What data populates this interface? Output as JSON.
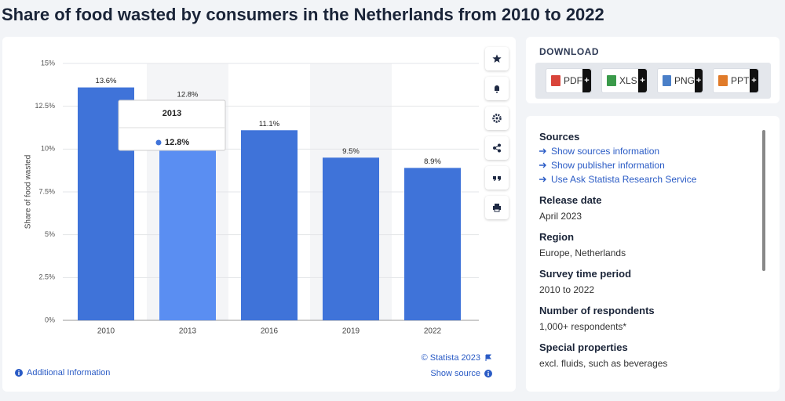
{
  "header": {
    "title": "Share of food wasted by consumers in the Netherlands from 2010 to 2022"
  },
  "chart_data": {
    "type": "bar",
    "ylabel": "Share of food wasted",
    "categories": [
      "2010",
      "2013",
      "2016",
      "2019",
      "2022"
    ],
    "values": [
      13.6,
      12.8,
      11.1,
      9.5,
      8.9
    ],
    "value_labels": [
      "13.6%",
      "12.8%",
      "11.1%",
      "9.5%",
      "8.9%"
    ],
    "color": "#3f73d9",
    "highlight_color": "#5a8ef2",
    "ylim": [
      0,
      15
    ],
    "yticks": [
      {
        "value": 0,
        "label": "0%"
      },
      {
        "value": 2.5,
        "label": "2.5%"
      },
      {
        "value": 5,
        "label": "5%"
      },
      {
        "value": 7.5,
        "label": "7.5%"
      },
      {
        "value": 10,
        "label": "10%"
      },
      {
        "value": 12.5,
        "label": "12.5%"
      },
      {
        "value": 15,
        "label": "15%"
      }
    ],
    "grid": true
  },
  "chart_footer": {
    "copyright": "© Statista 2023",
    "show_source": "Show source",
    "additional_info": "Additional Information"
  },
  "download": {
    "title": "DOWNLOAD",
    "formats": [
      "PDF",
      "XLS",
      "PNG",
      "PPT"
    ],
    "action": "+"
  },
  "details": {
    "sources": {
      "title": "Sources",
      "links": [
        "Show sources information",
        "Show publisher information",
        "Use Ask Statista Research Service"
      ]
    },
    "sections": [
      {
        "title": "Release date",
        "text": "April 2023"
      },
      {
        "title": "Region",
        "text": "Europe, Netherlands"
      },
      {
        "title": "Survey time period",
        "text": "2010 to 2022"
      },
      {
        "title": "Number of respondents",
        "text": "1,000+ respondents*"
      },
      {
        "title": "Special properties",
        "text": "excl. fluids, such as beverages"
      }
    ]
  }
}
